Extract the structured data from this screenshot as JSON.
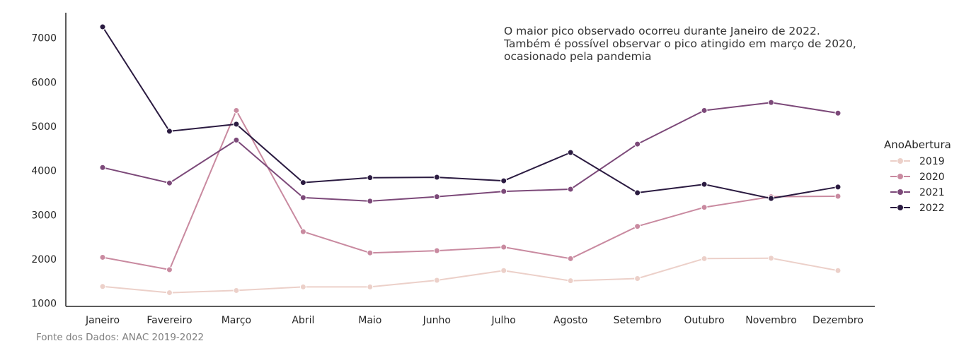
{
  "chart_data": {
    "type": "line",
    "title": "",
    "xlabel": "",
    "ylabel": "",
    "categories": [
      "Janeiro",
      "Favereiro",
      "Março",
      "Abril",
      "Maio",
      "Junho",
      "Julho",
      "Agosto",
      "Setembro",
      "Outubro",
      "Novembro",
      "Dezembro"
    ],
    "yticks": [
      "1000",
      "2000",
      "3000",
      "4000",
      "5000",
      "6000",
      "7000"
    ],
    "ylim": [
      930,
      7570
    ],
    "grid": false,
    "legend": {
      "title": "AnoAbertura",
      "placement": "right"
    },
    "series": [
      {
        "name": "2019",
        "color": "#ecd0c9",
        "values": [
          1380,
          1240,
          1290,
          1370,
          1370,
          1520,
          1740,
          1510,
          1560,
          2010,
          2020,
          1740
        ]
      },
      {
        "name": "2020",
        "color": "#c98aa0",
        "values": [
          2040,
          1760,
          5360,
          2620,
          2140,
          2190,
          2270,
          2010,
          2740,
          3170,
          3410,
          3420
        ]
      },
      {
        "name": "2021",
        "color": "#7c4979",
        "values": [
          4070,
          3720,
          4690,
          3390,
          3310,
          3410,
          3530,
          3580,
          4600,
          5360,
          5540,
          5300
        ]
      },
      {
        "name": "2022",
        "color": "#2b1b41",
        "values": [
          7250,
          4890,
          5050,
          3730,
          3840,
          3850,
          3770,
          4410,
          3500,
          3690,
          3370,
          3630
        ]
      }
    ],
    "annotations": [
      "O maior pico observado ocorreu durante Janeiro de 2022.",
      "Também é possível observar o pico atingido em março de 2020,",
      "ocasionado pela pandemia"
    ],
    "source_note": "Fonte dos Dados: ANAC 2019-2022"
  }
}
